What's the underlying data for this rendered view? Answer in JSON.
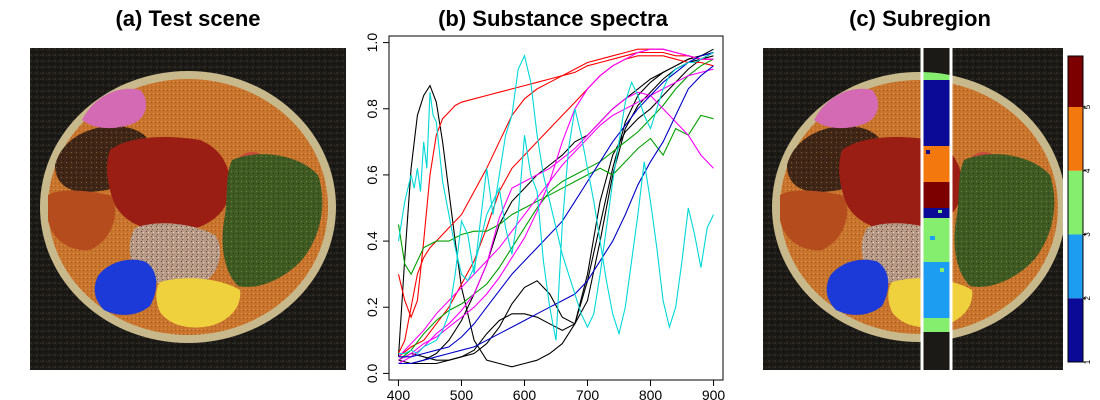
{
  "panels": {
    "a": {
      "title": "(a) Test scene"
    },
    "b": {
      "title": "(b) Substance spectra"
    },
    "c": {
      "title": "(c) Subregion"
    }
  },
  "colors": {
    "background_dark": "#1c1a17",
    "dish_rim": "#c8b98c",
    "dish_fill": "#c47a34",
    "magenta_region": "#d36ab3",
    "dark_brown_region": "#3f2616",
    "orange_region": "#c8742c",
    "red_region": "#9b1e14",
    "green_region": "#3f5a22",
    "blue_region": "#1b3ad8",
    "yellow_region": "#efd13e",
    "speckled_region": "#b89a86",
    "rust_region": "#b54c1e",
    "subregion_strip_line": "#ffffff"
  },
  "chart_data": {
    "type": "line",
    "title": "(b) Substance spectra",
    "xlabel": "",
    "ylabel": "",
    "xlim": [
      385,
      915
    ],
    "ylim": [
      -0.02,
      1.02
    ],
    "xticks": [
      400,
      500,
      600,
      700,
      800,
      900
    ],
    "yticks": [
      0.0,
      0.2,
      0.4,
      0.6,
      0.8,
      1.0
    ],
    "ytick_labels": [
      "0.0",
      "0.2",
      "0.4",
      "0.6",
      "0.8",
      "1.0"
    ],
    "xtick_labels": [
      "400",
      "500",
      "600",
      "700",
      "800",
      "900"
    ],
    "series": [
      {
        "color": "#000000",
        "x": [
          400,
          410,
          420,
          430,
          440,
          450,
          460,
          470,
          480,
          490,
          500,
          520,
          540,
          560,
          580,
          600,
          620,
          640,
          660,
          680,
          700,
          720,
          740,
          760,
          780,
          800,
          820,
          840,
          860,
          880,
          900
        ],
        "y": [
          0.05,
          0.35,
          0.62,
          0.78,
          0.84,
          0.87,
          0.82,
          0.7,
          0.55,
          0.4,
          0.26,
          0.1,
          0.04,
          0.03,
          0.02,
          0.03,
          0.04,
          0.06,
          0.09,
          0.15,
          0.28,
          0.45,
          0.62,
          0.76,
          0.84,
          0.88,
          0.91,
          0.93,
          0.95,
          0.96,
          0.98
        ]
      },
      {
        "color": "#000000",
        "x": [
          400,
          420,
          440,
          460,
          480,
          500,
          520,
          540,
          560,
          580,
          600,
          620,
          640,
          660,
          680,
          700,
          720,
          740,
          760,
          780,
          800,
          820,
          840,
          860,
          880,
          900
        ],
        "y": [
          0.04,
          0.06,
          0.05,
          0.04,
          0.04,
          0.05,
          0.06,
          0.09,
          0.14,
          0.21,
          0.26,
          0.28,
          0.24,
          0.17,
          0.15,
          0.22,
          0.4,
          0.6,
          0.74,
          0.81,
          0.85,
          0.89,
          0.92,
          0.94,
          0.95,
          0.97
        ]
      },
      {
        "color": "#000000",
        "x": [
          400,
          420,
          440,
          460,
          480,
          500,
          520,
          540,
          560,
          580,
          600,
          620,
          640,
          660,
          680,
          700,
          720,
          740,
          760,
          780,
          800,
          820,
          840,
          860,
          880,
          900
        ],
        "y": [
          0.04,
          0.03,
          0.03,
          0.03,
          0.04,
          0.05,
          0.07,
          0.12,
          0.16,
          0.18,
          0.18,
          0.17,
          0.15,
          0.13,
          0.15,
          0.3,
          0.52,
          0.66,
          0.73,
          0.77,
          0.8,
          0.84,
          0.88,
          0.92,
          0.95,
          0.96
        ]
      },
      {
        "color": "#000000",
        "x": [
          400,
          420,
          440,
          460,
          480,
          500,
          520,
          540,
          560,
          580,
          600,
          620,
          640,
          660,
          680,
          700,
          720,
          740,
          760,
          780,
          800,
          820,
          840,
          860,
          880,
          900
        ],
        "y": [
          0.03,
          0.03,
          0.04,
          0.06,
          0.1,
          0.16,
          0.24,
          0.33,
          0.45,
          0.52,
          0.56,
          0.6,
          0.63,
          0.66,
          0.7,
          0.72,
          0.76,
          0.8,
          0.83,
          0.86,
          0.89,
          0.91,
          0.93,
          0.95,
          0.96,
          0.97
        ]
      },
      {
        "color": "#ff0000",
        "x": [
          400,
          410,
          420,
          430,
          440,
          450,
          460,
          470,
          480,
          490,
          500,
          520,
          540,
          560,
          580,
          600,
          620,
          640,
          660,
          680,
          700,
          720,
          740,
          760,
          780,
          800,
          820,
          840,
          860,
          880,
          900
        ],
        "y": [
          0.3,
          0.22,
          0.17,
          0.22,
          0.4,
          0.6,
          0.72,
          0.77,
          0.79,
          0.81,
          0.82,
          0.83,
          0.84,
          0.85,
          0.86,
          0.87,
          0.88,
          0.89,
          0.9,
          0.92,
          0.94,
          0.95,
          0.96,
          0.97,
          0.98,
          0.98,
          0.98,
          0.97,
          0.96,
          0.95,
          0.95
        ]
      },
      {
        "color": "#ff0000",
        "x": [
          400,
          410,
          420,
          430,
          440,
          450,
          460,
          470,
          480,
          500,
          520,
          540,
          560,
          580,
          600,
          620,
          640,
          660,
          680,
          700,
          720,
          740,
          760,
          780,
          800,
          820,
          840,
          860,
          880,
          900
        ],
        "y": [
          0.06,
          0.1,
          0.2,
          0.3,
          0.35,
          0.38,
          0.4,
          0.42,
          0.44,
          0.48,
          0.55,
          0.62,
          0.7,
          0.78,
          0.83,
          0.86,
          0.88,
          0.9,
          0.91,
          0.93,
          0.94,
          0.95,
          0.96,
          0.97,
          0.97,
          0.97,
          0.96,
          0.96,
          0.95,
          0.95
        ]
      },
      {
        "color": "#ff0000",
        "x": [
          400,
          420,
          440,
          460,
          480,
          500,
          520,
          540,
          560,
          580,
          600,
          620,
          640,
          660,
          680,
          700,
          720,
          740,
          760,
          780,
          800,
          820,
          840,
          860,
          880,
          900
        ],
        "y": [
          0.05,
          0.08,
          0.1,
          0.15,
          0.2,
          0.27,
          0.34,
          0.44,
          0.55,
          0.62,
          0.66,
          0.7,
          0.74,
          0.78,
          0.82,
          0.86,
          0.9,
          0.93,
          0.95,
          0.96,
          0.96,
          0.96,
          0.95,
          0.94,
          0.94,
          0.93
        ]
      },
      {
        "color": "#00a000",
        "x": [
          400,
          410,
          420,
          430,
          440,
          460,
          480,
          500,
          520,
          540,
          560,
          580,
          600,
          620,
          640,
          660,
          680,
          700,
          720,
          740,
          760,
          780,
          800,
          820,
          840,
          860,
          880,
          900
        ],
        "y": [
          0.45,
          0.33,
          0.3,
          0.34,
          0.38,
          0.4,
          0.4,
          0.42,
          0.43,
          0.43,
          0.45,
          0.48,
          0.5,
          0.52,
          0.54,
          0.56,
          0.58,
          0.6,
          0.62,
          0.6,
          0.64,
          0.68,
          0.71,
          0.66,
          0.74,
          0.72,
          0.78,
          0.77
        ]
      },
      {
        "color": "#00a000",
        "x": [
          400,
          420,
          440,
          460,
          480,
          500,
          520,
          540,
          560,
          580,
          600,
          620,
          640,
          660,
          680,
          700,
          720,
          740,
          760,
          780,
          800,
          820,
          840,
          860,
          880,
          900
        ],
        "y": [
          0.04,
          0.07,
          0.12,
          0.16,
          0.19,
          0.21,
          0.24,
          0.27,
          0.32,
          0.38,
          0.44,
          0.5,
          0.55,
          0.58,
          0.6,
          0.62,
          0.64,
          0.67,
          0.7,
          0.73,
          0.77,
          0.81,
          0.86,
          0.9,
          0.93,
          0.95
        ]
      },
      {
        "color": "#ff00ff",
        "x": [
          400,
          420,
          440,
          460,
          480,
          500,
          520,
          540,
          560,
          580,
          600,
          620,
          640,
          660,
          680,
          700,
          720,
          740,
          760,
          780,
          800,
          820,
          840,
          860,
          880,
          900
        ],
        "y": [
          0.05,
          0.09,
          0.13,
          0.18,
          0.22,
          0.26,
          0.3,
          0.34,
          0.38,
          0.43,
          0.48,
          0.53,
          0.58,
          0.63,
          0.67,
          0.71,
          0.75,
          0.78,
          0.8,
          0.82,
          0.84,
          0.86,
          0.88,
          0.9,
          0.91,
          0.92
        ]
      },
      {
        "color": "#ff00ff",
        "x": [
          400,
          420,
          440,
          460,
          480,
          500,
          520,
          540,
          560,
          580,
          600,
          620,
          640,
          660,
          680,
          700,
          720,
          740,
          760,
          780,
          800,
          820,
          840,
          860,
          880,
          900
        ],
        "y": [
          0.03,
          0.05,
          0.08,
          0.12,
          0.15,
          0.19,
          0.24,
          0.33,
          0.47,
          0.56,
          0.58,
          0.6,
          0.62,
          0.65,
          0.68,
          0.72,
          0.76,
          0.8,
          0.83,
          0.85,
          0.84,
          0.8,
          0.76,
          0.72,
          0.66,
          0.62
        ]
      },
      {
        "color": "#ff00ff",
        "x": [
          400,
          420,
          440,
          460,
          480,
          500,
          520,
          540,
          560,
          580,
          600,
          620,
          640,
          660,
          680,
          700,
          720,
          740,
          760,
          780,
          800,
          820,
          840,
          860,
          880,
          900
        ],
        "y": [
          0.04,
          0.06,
          0.09,
          0.11,
          0.14,
          0.17,
          0.2,
          0.24,
          0.29,
          0.35,
          0.41,
          0.49,
          0.58,
          0.7,
          0.8,
          0.86,
          0.9,
          0.93,
          0.95,
          0.97,
          0.98,
          0.98,
          0.97,
          0.96,
          0.95,
          0.95
        ]
      },
      {
        "color": "#0000c8",
        "x": [
          400,
          420,
          440,
          460,
          480,
          500,
          520,
          540,
          560,
          580,
          600,
          620,
          640,
          660,
          680,
          700,
          720,
          740,
          760,
          780,
          800,
          820,
          840,
          860,
          880,
          900
        ],
        "y": [
          0.03,
          0.03,
          0.04,
          0.05,
          0.06,
          0.07,
          0.08,
          0.1,
          0.12,
          0.14,
          0.16,
          0.18,
          0.2,
          0.22,
          0.24,
          0.28,
          0.34,
          0.4,
          0.48,
          0.57,
          0.64,
          0.7,
          0.78,
          0.86,
          0.9,
          0.93
        ]
      },
      {
        "color": "#0000c8",
        "x": [
          400,
          420,
          440,
          460,
          480,
          500,
          520,
          540,
          560,
          580,
          600,
          620,
          640,
          660,
          680,
          700,
          720,
          740,
          760,
          780,
          800,
          820,
          840,
          860,
          880,
          900
        ],
        "y": [
          0.05,
          0.05,
          0.06,
          0.07,
          0.08,
          0.11,
          0.15,
          0.2,
          0.25,
          0.3,
          0.34,
          0.38,
          0.42,
          0.46,
          0.52,
          0.58,
          0.64,
          0.7,
          0.75,
          0.8,
          0.84,
          0.88,
          0.91,
          0.94,
          0.96,
          0.97
        ]
      },
      {
        "color": "#00d8d8",
        "x": [
          400,
          410,
          420,
          425,
          430,
          435,
          440,
          445,
          450,
          455,
          460,
          470,
          480,
          490,
          500,
          510,
          520,
          530,
          540,
          550,
          560,
          570,
          580,
          590,
          600,
          610,
          620,
          630,
          640,
          650,
          660,
          670,
          680,
          690,
          700,
          710,
          720,
          730,
          740,
          750,
          760,
          770,
          780,
          790,
          800,
          810,
          820,
          830,
          840,
          850,
          860,
          870,
          880,
          890,
          900
        ],
        "y": [
          0.4,
          0.52,
          0.6,
          0.56,
          0.62,
          0.55,
          0.7,
          0.62,
          0.85,
          0.78,
          0.76,
          0.58,
          0.48,
          0.38,
          0.3,
          0.28,
          0.32,
          0.4,
          0.48,
          0.52,
          0.56,
          0.44,
          0.36,
          0.48,
          0.72,
          0.6,
          0.55,
          0.34,
          0.2,
          0.1,
          0.45,
          0.68,
          0.8,
          0.72,
          0.62,
          0.52,
          0.4,
          0.28,
          0.18,
          0.12,
          0.2,
          0.34,
          0.48,
          0.64,
          0.52,
          0.38,
          0.22,
          0.14,
          0.2,
          0.34,
          0.5,
          0.42,
          0.32,
          0.44,
          0.48
        ]
      },
      {
        "color": "#00d8d8",
        "x": [
          400,
          410,
          420,
          430,
          440,
          450,
          460,
          470,
          480,
          490,
          500,
          510,
          520,
          530,
          540,
          550,
          560,
          570,
          580,
          590,
          600,
          610,
          620,
          630,
          640,
          650,
          660,
          670,
          680,
          690,
          700,
          710,
          720,
          730,
          740,
          750,
          760,
          770,
          780,
          790,
          800,
          810,
          820,
          830,
          840,
          850,
          860,
          870,
          880,
          890,
          900
        ],
        "y": [
          0.06,
          0.06,
          0.07,
          0.06,
          0.08,
          0.09,
          0.1,
          0.13,
          0.18,
          0.3,
          0.46,
          0.42,
          0.3,
          0.46,
          0.62,
          0.48,
          0.6,
          0.72,
          0.78,
          0.92,
          0.96,
          0.88,
          0.72,
          0.6,
          0.52,
          0.44,
          0.36,
          0.3,
          0.24,
          0.18,
          0.14,
          0.18,
          0.3,
          0.44,
          0.58,
          0.7,
          0.82,
          0.88,
          0.84,
          0.78,
          0.74,
          0.8,
          0.86,
          0.9,
          0.92,
          0.93,
          0.94,
          0.94,
          0.95,
          0.96,
          0.97
        ]
      }
    ]
  },
  "colorbar": {
    "ticks": [
      "1",
      "2",
      "3",
      "4",
      "5"
    ],
    "segments": [
      {
        "from": 1,
        "to": 2,
        "color": "#0a0a96"
      },
      {
        "from": 2,
        "to": 3,
        "color": "#1c9df1"
      },
      {
        "from": 3,
        "to": 4,
        "color": "#86ee6e"
      },
      {
        "from": 4,
        "to": 5,
        "color": "#f3780e"
      },
      {
        "from": 5,
        "to": 5.8,
        "color": "#7c0000"
      }
    ]
  }
}
